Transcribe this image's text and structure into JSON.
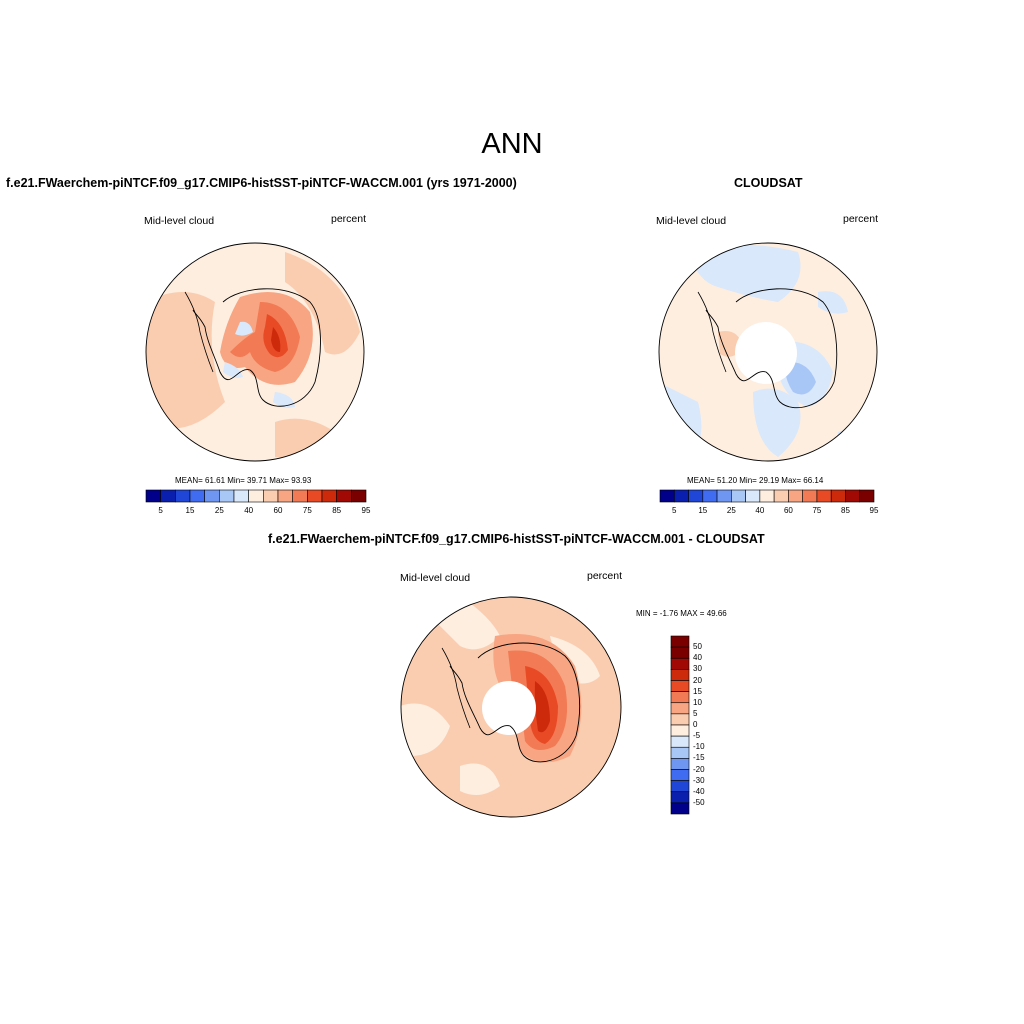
{
  "figure": {
    "title": "ANN"
  },
  "panels": {
    "model": {
      "title": "f.e21.FWaerchem-piNTCF.f09_g17.CMIP6-histSST-piNTCF-WACCM.001 (yrs 1971-2000)",
      "left_label": "Mid-level cloud",
      "right_label": "percent",
      "stats_text": "MEAN=  61.61  Min=  39.71  Max=  93.93"
    },
    "obs": {
      "title": "CLOUDSAT",
      "left_label": "Mid-level cloud",
      "right_label": "percent",
      "stats_text": "MEAN=  51.20  Min=  29.19  Max=  66.14"
    },
    "diff": {
      "title": "f.e21.FWaerchem-piNTCF.f09_g17.CMIP6-histSST-piNTCF-WACCM.001 - CLOUDSAT",
      "left_label": "Mid-level cloud",
      "right_label": "percent",
      "minmax_text": "MIN =  -1.76 MAX =  49.66"
    }
  },
  "colorbars": {
    "abs_levels": [
      "5",
      "15",
      "25",
      "40",
      "60",
      "75",
      "85",
      "95"
    ],
    "abs_colors": [
      "#00008b",
      "#0a1fae",
      "#1f46d6",
      "#3f6cf0",
      "#6f97f2",
      "#a9c7f6",
      "#d9e8fb",
      "#fdeee0",
      "#fbcdb0",
      "#f7a582",
      "#f27a54",
      "#e84a25",
      "#cd2a0c",
      "#a10a04",
      "#7a0000"
    ],
    "diff_levels": [
      "50",
      "40",
      "30",
      "20",
      "15",
      "10",
      "5",
      "0",
      "-5",
      "-10",
      "-15",
      "-20",
      "-30",
      "-40",
      "-50"
    ],
    "diff_colors": [
      "#7a0000",
      "#a10a04",
      "#cd2a0c",
      "#e84a25",
      "#f27a54",
      "#f7a582",
      "#fbcdb0",
      "#fdeee0",
      "#d9e8fb",
      "#a9c7f6",
      "#6f97f2",
      "#3f6cf0",
      "#1f46d6",
      "#0a1fae",
      "#00008b"
    ]
  }
}
